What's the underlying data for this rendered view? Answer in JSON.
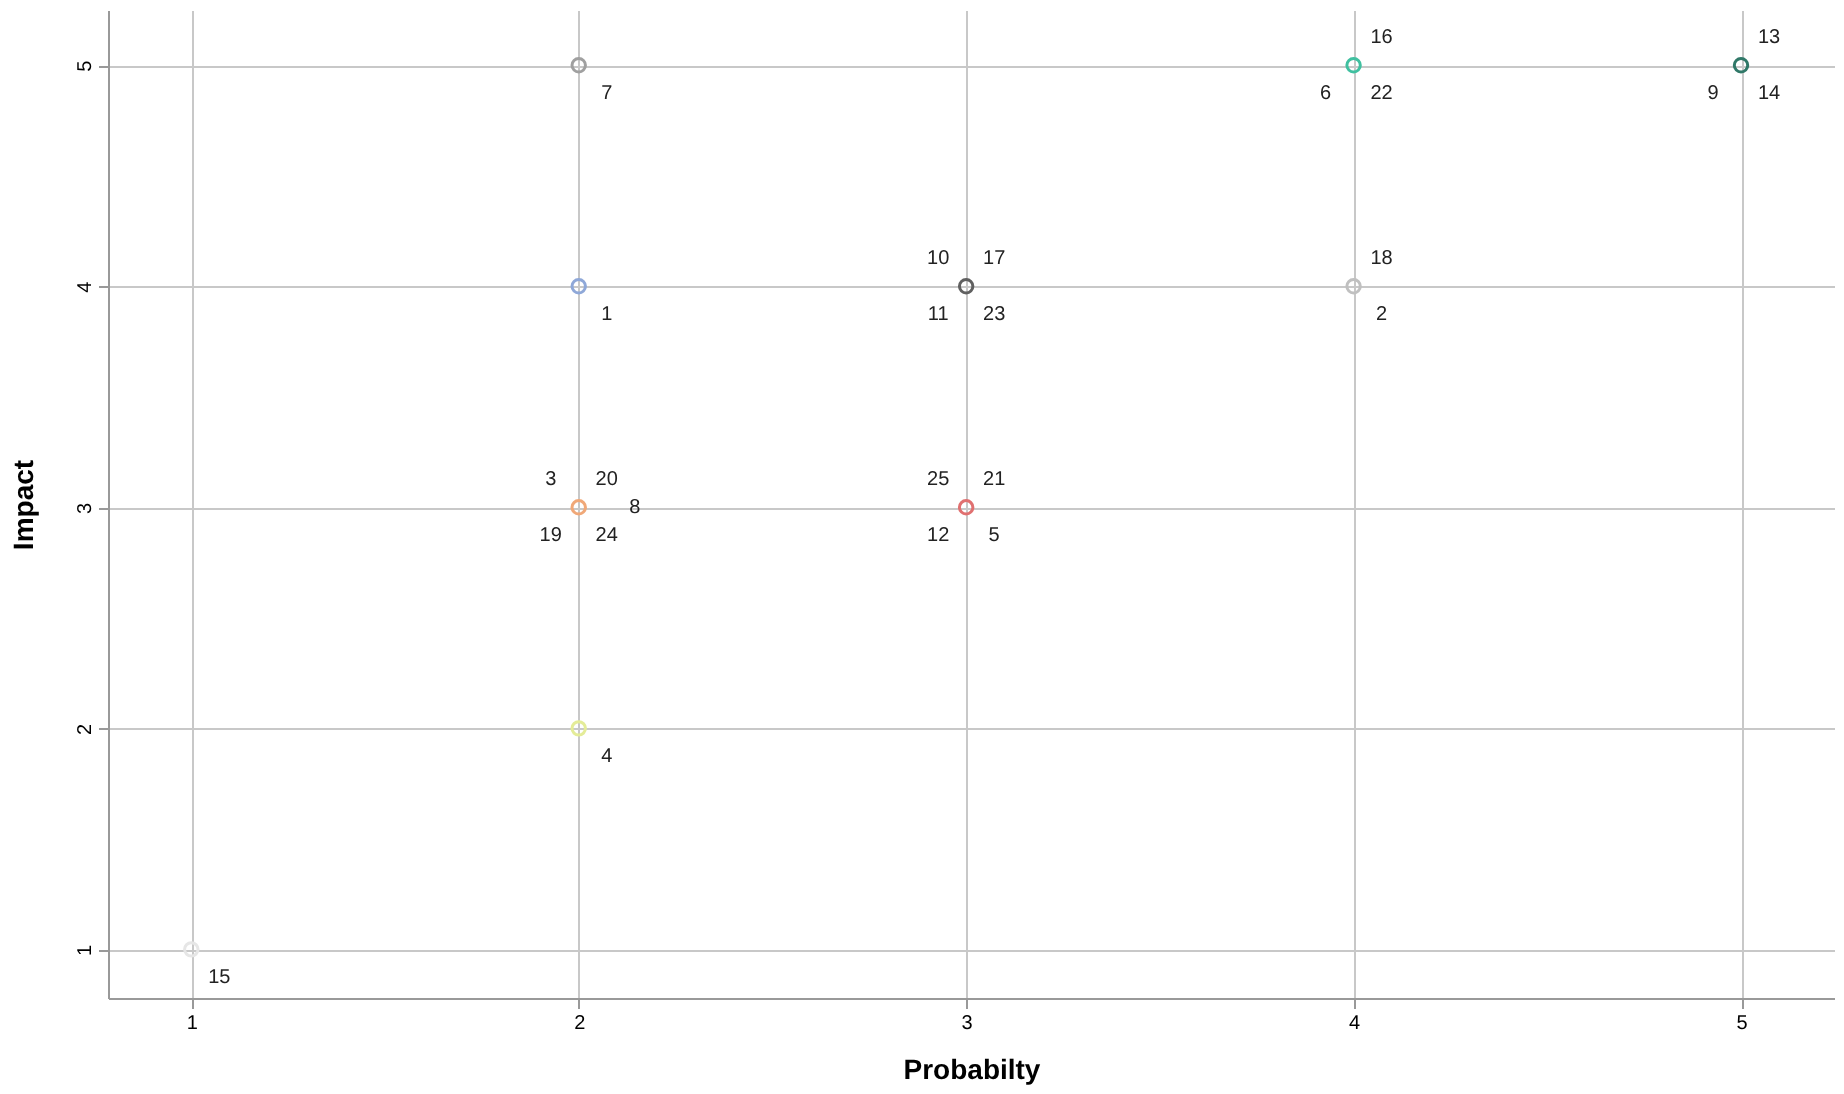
{
  "chart_data": {
    "type": "scatter",
    "xlabel": "Probabilty",
    "ylabel": "Impact",
    "x": [
      2,
      2,
      2,
      2,
      1,
      3,
      3,
      4,
      4,
      5
    ],
    "values": [
      5,
      4,
      3,
      2,
      1,
      4,
      3,
      5,
      4,
      5
    ],
    "colors": [
      "#a0a0a0",
      "#8fa8d8",
      "#f0a878",
      "#e4ec98",
      "#e6e6e6",
      "#606060",
      "#e07070",
      "#40c0a0",
      "#c0c0c0",
      "#307868"
    ],
    "xlim": [
      0.785,
      5.24
    ],
    "ylim": [
      0.78,
      5.25
    ],
    "xticks": [
      1,
      2,
      3,
      4,
      5
    ],
    "yticks": [
      1,
      2,
      3,
      4,
      5
    ],
    "grid": true,
    "marker": "circle",
    "legend": false,
    "annotations": [
      {
        "text": "7",
        "x": 2,
        "y": 5
      },
      {
        "text": "1",
        "x": 2,
        "y": 4
      },
      {
        "text": "24",
        "x": 2,
        "y": 3
      },
      {
        "text": "20",
        "x": 2,
        "y": 3
      },
      {
        "text": "19",
        "x": 2,
        "y": 3
      },
      {
        "text": "3",
        "x": 2,
        "y": 3
      },
      {
        "text": "8",
        "x": 2,
        "y": 3
      },
      {
        "text": "4",
        "x": 2,
        "y": 2
      },
      {
        "text": "15",
        "x": 1,
        "y": 1
      },
      {
        "text": "23",
        "x": 3,
        "y": 4
      },
      {
        "text": "17",
        "x": 3,
        "y": 4
      },
      {
        "text": "11",
        "x": 3,
        "y": 4
      },
      {
        "text": "10",
        "x": 3,
        "y": 4
      },
      {
        "text": "5",
        "x": 3,
        "y": 3
      },
      {
        "text": "21",
        "x": 3,
        "y": 3
      },
      {
        "text": "12",
        "x": 3,
        "y": 3
      },
      {
        "text": "25",
        "x": 3,
        "y": 3
      },
      {
        "text": "22",
        "x": 4,
        "y": 5
      },
      {
        "text": "16",
        "x": 4,
        "y": 5
      },
      {
        "text": "6",
        "x": 4,
        "y": 5
      },
      {
        "text": "2",
        "x": 4,
        "y": 4
      },
      {
        "text": "18",
        "x": 4,
        "y": 4
      },
      {
        "text": "14",
        "x": 5,
        "y": 5
      },
      {
        "text": "13",
        "x": 5,
        "y": 5
      },
      {
        "text": "9",
        "x": 5,
        "y": 5
      }
    ]
  }
}
